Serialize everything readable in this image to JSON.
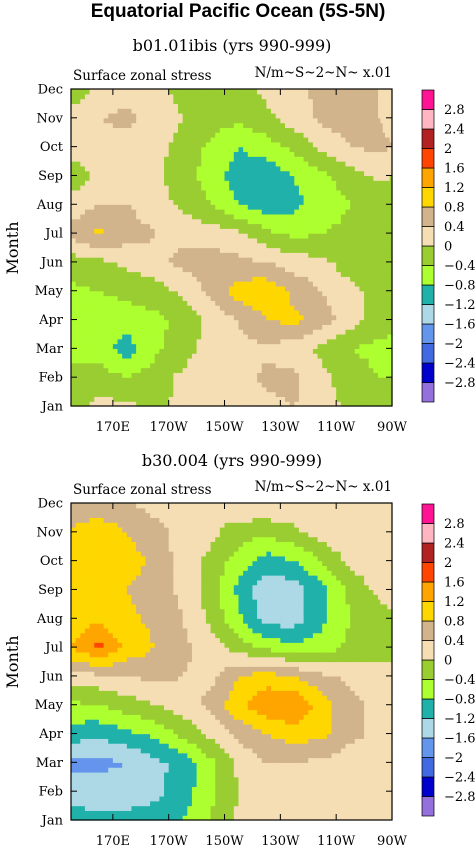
{
  "page": {
    "title": "Equatorial Pacific Ocean (5S-5N)"
  },
  "chart_data": [
    {
      "type": "heatmap",
      "title": "b01.01ibis (yrs 990-999)",
      "left_label": "Surface zonal stress",
      "right_label": "N/m~S~2~N~ x.01",
      "ylabel": "Month",
      "x_ticks": [
        "170E",
        "170W",
        "150W",
        "130W",
        "110W",
        "90W"
      ],
      "x_tick_values": [
        170,
        190,
        210,
        230,
        250,
        270
      ],
      "xlim": [
        155,
        270
      ],
      "y_ticks": [
        "Jan",
        "Feb",
        "Mar",
        "Apr",
        "May",
        "Jun",
        "Jul",
        "Aug",
        "Sep",
        "Oct",
        "Nov",
        "Dec"
      ],
      "x": [
        155,
        165,
        175,
        185,
        195,
        205,
        215,
        225,
        235,
        245,
        255,
        265,
        270
      ],
      "z": [
        [
          -0.2,
          0.1,
          0.1,
          -0.1,
          0.1,
          0.2,
          0.1,
          0.3,
          0.4,
          0.2,
          -0.1,
          -0.3,
          -0.3
        ],
        [
          -0.3,
          -0.2,
          -0.4,
          -0.2,
          0.1,
          0.3,
          0.2,
          0.5,
          0.5,
          0.1,
          -0.2,
          -0.4,
          -0.4
        ],
        [
          -0.5,
          -0.6,
          -1.0,
          -0.5,
          -0.2,
          0.2,
          0.3,
          0.3,
          0.2,
          -0.1,
          -0.4,
          -0.5,
          -0.5
        ],
        [
          -0.6,
          -0.7,
          -0.6,
          -0.5,
          -0.3,
          0.1,
          0.4,
          0.8,
          0.9,
          0.6,
          0.2,
          -0.2,
          -0.3
        ],
        [
          -0.5,
          -0.4,
          -0.3,
          -0.2,
          0.1,
          0.5,
          1.0,
          1.1,
          0.7,
          0.4,
          0.1,
          -0.1,
          -0.2
        ],
        [
          -0.2,
          -0.1,
          0.1,
          0.3,
          0.5,
          0.6,
          0.5,
          0.4,
          0.2,
          0.1,
          -0.2,
          -0.3,
          -0.3
        ],
        [
          0.5,
          0.9,
          0.6,
          0.4,
          0.3,
          0.2,
          0.1,
          -0.3,
          -0.5,
          -0.4,
          -0.3,
          -0.4,
          -0.3
        ],
        [
          0.2,
          0.4,
          0.4,
          0.2,
          -0.1,
          -0.4,
          -0.8,
          -1.0,
          -0.9,
          -0.6,
          -0.4,
          -0.3,
          -0.2
        ],
        [
          -0.3,
          0.1,
          0.2,
          0.1,
          -0.2,
          -0.6,
          -1.0,
          -1.1,
          -0.8,
          -0.5,
          -0.2,
          0.1,
          0.0
        ],
        [
          0.2,
          0.3,
          0.2,
          0.1,
          -0.1,
          -0.5,
          -0.8,
          -0.6,
          -0.3,
          0.1,
          0.4,
          0.5,
          0.4
        ],
        [
          0.2,
          0.4,
          0.5,
          0.2,
          0.0,
          -0.2,
          -0.3,
          -0.1,
          0.2,
          0.5,
          0.6,
          0.4,
          0.3
        ],
        [
          -0.3,
          0.1,
          0.2,
          0.1,
          -0.1,
          -0.3,
          -0.2,
          0.1,
          0.3,
          0.5,
          0.6,
          0.4,
          0.2
        ]
      ]
    },
    {
      "type": "heatmap",
      "title": "b30.004 (yrs 990-999)",
      "left_label": "Surface zonal stress",
      "right_label": "N/m~S~2~N~ x.01",
      "ylabel": "Month",
      "x_ticks": [
        "170E",
        "170W",
        "150W",
        "130W",
        "110W",
        "90W"
      ],
      "x_tick_values": [
        170,
        190,
        210,
        230,
        250,
        270
      ],
      "xlim": [
        155,
        270
      ],
      "y_ticks": [
        "Jan",
        "Feb",
        "Mar",
        "Apr",
        "May",
        "Jun",
        "Jul",
        "Aug",
        "Sep",
        "Oct",
        "Nov",
        "Dec"
      ],
      "x": [
        155,
        165,
        175,
        185,
        195,
        205,
        215,
        225,
        235,
        245,
        255,
        265,
        270
      ],
      "z": [
        [
          -1.0,
          -1.1,
          -1.1,
          -1.0,
          -0.8,
          -0.4,
          0.1,
          0.3,
          0.3,
          0.2,
          0.1,
          0.2,
          0.3
        ],
        [
          -1.4,
          -1.4,
          -1.4,
          -1.3,
          -1.0,
          -0.5,
          0.0,
          0.3,
          0.4,
          0.3,
          0.2,
          0.2,
          0.3
        ],
        [
          -1.7,
          -1.7,
          -1.6,
          -1.3,
          -1.1,
          -0.5,
          0.1,
          0.4,
          0.4,
          0.3,
          0.2,
          0.3,
          0.3
        ],
        [
          -1.0,
          -1.1,
          -0.9,
          -0.7,
          -0.3,
          0.1,
          0.5,
          0.8,
          1.0,
          0.9,
          0.5,
          0.3,
          0.3
        ],
        [
          -0.5,
          -0.4,
          -0.2,
          0.0,
          0.2,
          0.5,
          1.1,
          1.5,
          1.6,
          1.0,
          0.5,
          0.3,
          0.3
        ],
        [
          0.2,
          0.3,
          0.4,
          0.5,
          0.4,
          0.3,
          0.8,
          1.0,
          0.8,
          0.5,
          0.3,
          0.2,
          0.1
        ],
        [
          1.2,
          1.7,
          1.1,
          0.8,
          0.5,
          0.2,
          -0.2,
          -0.5,
          -0.7,
          -0.6,
          -0.3,
          -0.2,
          -0.1
        ],
        [
          1.0,
          1.1,
          0.9,
          0.7,
          0.4,
          -0.1,
          -0.7,
          -1.4,
          -1.4,
          -0.9,
          -0.4,
          -0.2,
          -0.1
        ],
        [
          0.8,
          0.9,
          0.8,
          0.6,
          0.3,
          -0.2,
          -0.9,
          -1.5,
          -1.4,
          -0.9,
          -0.3,
          0.1,
          0.2
        ],
        [
          1.0,
          1.2,
          1.0,
          0.7,
          0.2,
          -0.1,
          -0.6,
          -1.0,
          -0.8,
          -0.4,
          0.1,
          0.3,
          0.2
        ],
        [
          0.9,
          1.1,
          0.8,
          0.5,
          0.3,
          0.1,
          -0.2,
          -0.3,
          -0.1,
          0.2,
          0.4,
          0.4,
          0.3
        ],
        [
          0.4,
          0.5,
          0.4,
          0.3,
          0.2,
          0.1,
          0.3,
          0.4,
          0.3,
          0.3,
          0.2,
          0.1,
          0.0
        ]
      ]
    }
  ],
  "colorbar": {
    "levels": [
      -2.8,
      -2.4,
      -2,
      -1.6,
      -1.2,
      -0.8,
      -0.4,
      0,
      0.4,
      0.8,
      1.2,
      1.6,
      2,
      2.4,
      2.8
    ],
    "labels": [
      "2.8",
      "2.4",
      "2",
      "1.6",
      "1.2",
      "0.8",
      "0.4",
      "0",
      "−0.4",
      "−0.8",
      "−1.2",
      "−1.6",
      "−2",
      "−2.4",
      "−2.8"
    ],
    "colors": [
      "#9370db",
      "#0000cd",
      "#4169e1",
      "#6495ed",
      "#add8e6",
      "#20b2aa",
      "#adff2f",
      "#9acd32",
      "#f5deb3",
      "#d2b48c",
      "#ffd700",
      "#ffa500",
      "#ff4500",
      "#b22222",
      "#ffb6c1",
      "#ff1493"
    ]
  }
}
